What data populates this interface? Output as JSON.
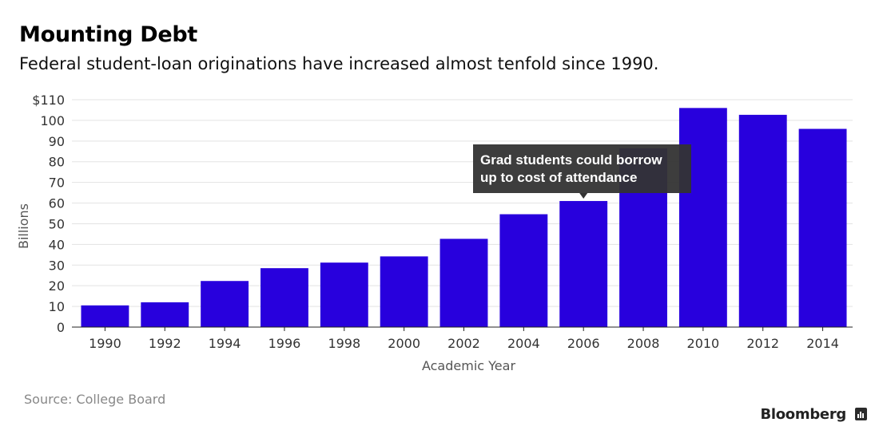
{
  "header": {
    "title": "Mounting Debt",
    "subtitle": "Federal student-loan originations have increased almost tenfold since 1990."
  },
  "chart_data": {
    "type": "bar",
    "categories": [
      "1990",
      "1992",
      "1994",
      "1996",
      "1998",
      "2000",
      "2002",
      "2004",
      "2006",
      "2008",
      "2010",
      "2012",
      "2014"
    ],
    "values": [
      10.5,
      12,
      22.3,
      28.5,
      31.2,
      34.2,
      42.7,
      54.6,
      61,
      86.5,
      106,
      102.7,
      95.9
    ],
    "xlabel": "Academic Year",
    "ylabel": "Billions",
    "ylim": [
      0,
      110
    ],
    "yticks": [
      {
        "value": 0,
        "label": "0"
      },
      {
        "value": 10,
        "label": "10"
      },
      {
        "value": 20,
        "label": "20"
      },
      {
        "value": 30,
        "label": "30"
      },
      {
        "value": 40,
        "label": "40"
      },
      {
        "value": 50,
        "label": "50"
      },
      {
        "value": 60,
        "label": "60"
      },
      {
        "value": 70,
        "label": "70"
      },
      {
        "value": 80,
        "label": "80"
      },
      {
        "value": 90,
        "label": "90"
      },
      {
        "value": 100,
        "label": "100"
      },
      {
        "value": 110,
        "label": "$110"
      }
    ],
    "grid": true,
    "bar_color": "#2800dd",
    "annotation": {
      "category": "2006",
      "lines": [
        "Grad students could borrow",
        "up to cost of attendance"
      ]
    }
  },
  "footer": {
    "source": "Source: College Board",
    "brand": "Bloomberg"
  }
}
